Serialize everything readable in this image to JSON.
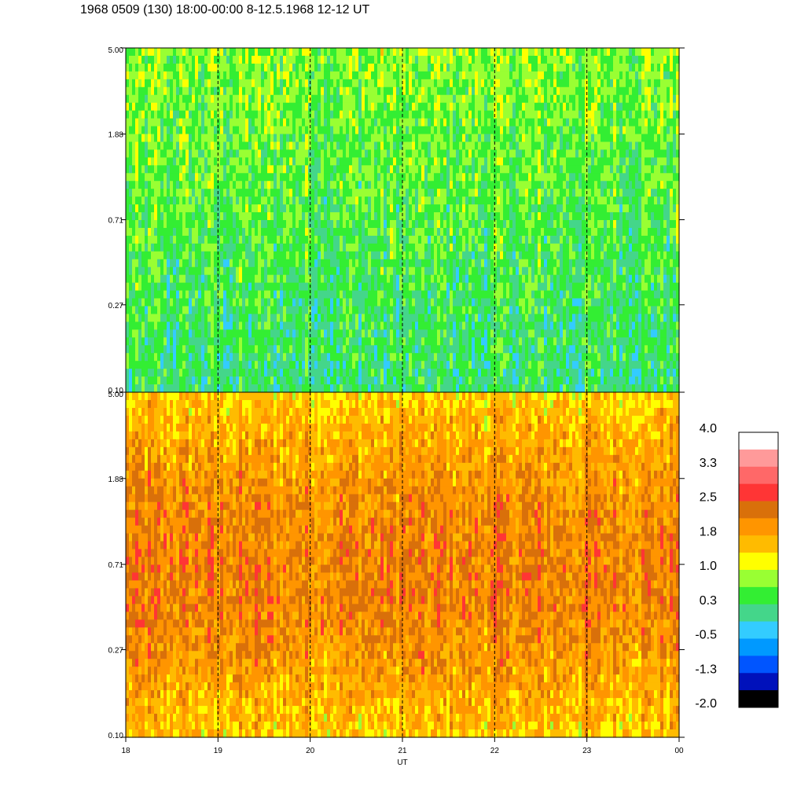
{
  "title": "1968 0509 (130) 18:00-00:00 8-12.5.1968  12-12 UT",
  "chart_data": {
    "type": "heatmap",
    "xlabel": "UT",
    "x_ticks": [
      "18",
      "19",
      "20",
      "21",
      "22",
      "23",
      "00"
    ],
    "x_range": [
      18,
      24
    ],
    "panels": [
      {
        "y_ticks": [
          "5.00",
          "1.88",
          "0.71",
          "0.27",
          "0.10"
        ],
        "y_range": [
          0.1,
          5.0
        ],
        "y_scale": "log",
        "level_range": [
          -0.6,
          1.8
        ]
      },
      {
        "y_ticks": [
          "5.00",
          "1.88",
          "0.71",
          "0.27",
          "0.10"
        ],
        "y_range": [
          0.1,
          5.0
        ],
        "y_scale": "log",
        "level_range": [
          0.6,
          2.6
        ]
      }
    ],
    "grid": "vertical dashed lines at each hour",
    "colorbar": {
      "labels": [
        "4.0",
        "3.3",
        "2.5",
        "1.8",
        "1.0",
        "0.3",
        "-0.5",
        "-1.3",
        "-2.0"
      ],
      "colors": [
        "#ffffff",
        "#ff9a9a",
        "#ff6868",
        "#ff3535",
        "#d9700a",
        "#ff9500",
        "#ffbb00",
        "#ffff00",
        "#99ff33",
        "#33ee33",
        "#44d68a",
        "#33ccff",
        "#0099ff",
        "#0055ff",
        "#0011bb",
        "#000000"
      ]
    }
  }
}
